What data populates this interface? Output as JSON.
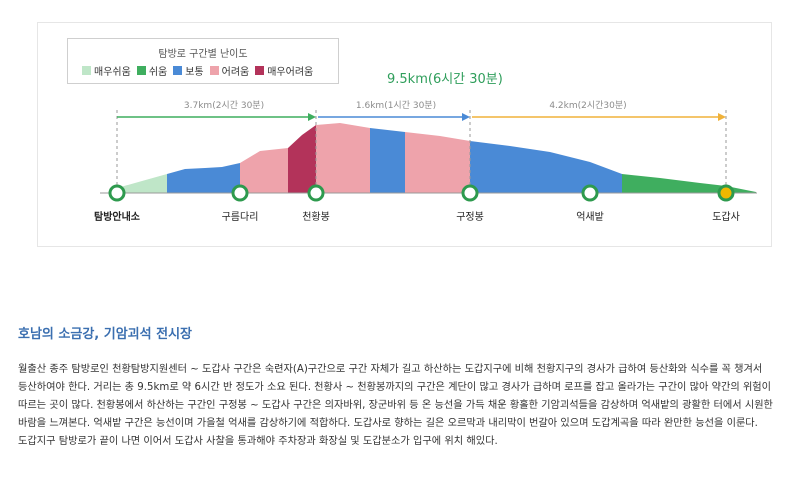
{
  "legend": {
    "title": "탐방로 구간별 난이도",
    "items": [
      {
        "label": "매우쉬움",
        "color": "#bfe6c8"
      },
      {
        "label": "쉬움",
        "color": "#3fae5f"
      },
      {
        "label": "보통",
        "color": "#4a8ad6"
      },
      {
        "label": "어려움",
        "color": "#eea3ab"
      },
      {
        "label": "매우어려움",
        "color": "#b3335a"
      }
    ]
  },
  "total": "9.5km(6시간 30분)",
  "segments": [
    {
      "label": "3.7km(2시간 30분)"
    },
    {
      "label": "1.6km(1시간 30분)"
    },
    {
      "label": "4.2km(2시간30분)"
    }
  ],
  "points": [
    {
      "name": "탐방안내소"
    },
    {
      "name": "구름다리"
    },
    {
      "name": "천황봉"
    },
    {
      "name": "구정봉"
    },
    {
      "name": "억새밭"
    },
    {
      "name": "도갑사"
    }
  ],
  "article": {
    "title": "호남의 소금강, 기암괴석 전시장",
    "body": "월출산 종주 탐방로인 천황탐방지원센터 ~ 도갑사 구간은 숙련자(A)구간으로 구간 자체가 길고 하산하는 도갑지구에 비해 천황지구의 경사가 급하여 등산화와 식수를 꼭 챙겨서 등산하여야 한다. 거리는 총 9.5km로 약 6시간 반 정도가 소요 된다. 천황사 ~ 천황봉까지의 구간은 계단이 많고 경사가 급하며 로프를 잡고 올라가는 구간이 많아 약간의 위험이 따르는 곳이 많다. 천황봉에서 하산하는 구간인 구정봉 ~ 도갑사 구간은 의자바위, 장군바위 등 온 능선을 가득 채운 황홀한 기암괴석들을 감상하며 억새밭의 광활한 터에서 시원한 바람을 느껴본다. 억새밭 구간은 능선이며 가을철 억새를 감상하기에 적합하다. 도갑사로 향하는 길은 오르막과 내리막이 번갈아 있으며 도갑계곡을 따라 완만한 능선을 이룬다. 도갑지구 탐방로가 끝이 나면 이어서 도갑사 사찰을 통과해야 주차장과 화장실 및 도갑분소가 입구에 위치 해있다."
  },
  "colors": {
    "arrow_green": "#3fae5f",
    "arrow_blue": "#4a8ad6",
    "arrow_orange": "#f0b23a",
    "endpoint": "#f0b800"
  }
}
